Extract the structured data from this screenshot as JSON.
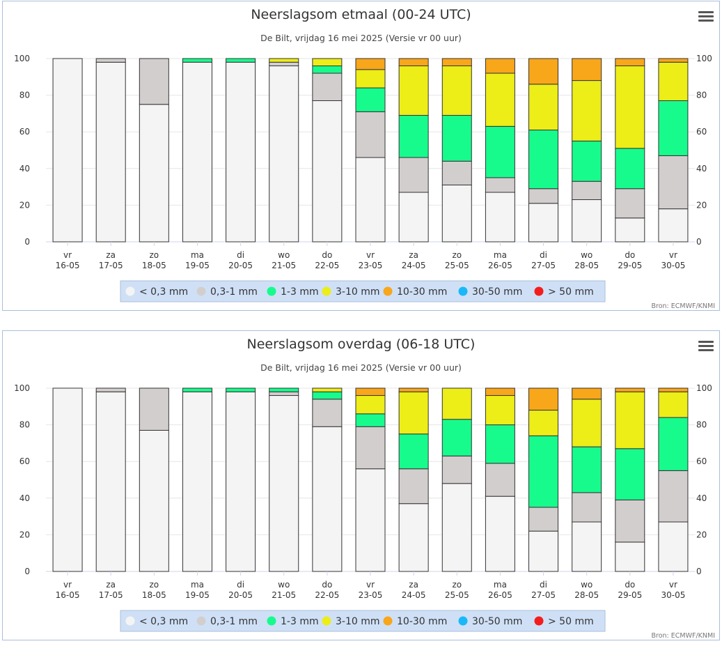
{
  "colors": {
    "lt03": "#f4f4f4",
    "c03_1": "#d3cece",
    "c1_3": "#17fb8d",
    "c3_10": "#eded18",
    "c10_30": "#f8a61a",
    "c30_50": "#1ab8f8",
    "gt50": "#f41d1d"
  },
  "legend": [
    {
      "label": "< 0,3 mm",
      "color": "#f4f4f4"
    },
    {
      "label": "0,3-1 mm",
      "color": "#d3cece"
    },
    {
      "label": "1-3 mm",
      "color": "#17fb8d"
    },
    {
      "label": "3-10 mm",
      "color": "#eded18"
    },
    {
      "label": "10-30 mm",
      "color": "#f8a61a"
    },
    {
      "label": "30-50 mm",
      "color": "#1ab8f8"
    },
    {
      "label": "> 50 mm",
      "color": "#f41d1d"
    }
  ],
  "credits": "Bron: ECMWF/KNMI",
  "chart_data": [
    {
      "type": "bar",
      "stacked": true,
      "title": "Neerslagsom etmaal (00-24 UTC)",
      "subtitle": "De Bilt, vrijdag 16 mei 2025 (Versie vr 00 uur)",
      "categories": [
        [
          "vr",
          "16-05"
        ],
        [
          "za",
          "17-05"
        ],
        [
          "zo",
          "18-05"
        ],
        [
          "ma",
          "19-05"
        ],
        [
          "di",
          "20-05"
        ],
        [
          "wo",
          "21-05"
        ],
        [
          "do",
          "22-05"
        ],
        [
          "vr",
          "23-05"
        ],
        [
          "za",
          "24-05"
        ],
        [
          "zo",
          "25-05"
        ],
        [
          "ma",
          "26-05"
        ],
        [
          "di",
          "27-05"
        ],
        [
          "wo",
          "28-05"
        ],
        [
          "do",
          "29-05"
        ],
        [
          "vr",
          "30-05"
        ]
      ],
      "ylim": [
        0,
        100
      ],
      "yticks": [
        0,
        20,
        40,
        60,
        80,
        100
      ],
      "grid": true,
      "legend_position": "bottom",
      "series": [
        {
          "name": "> 50 mm",
          "color": "#f41d1d",
          "values": [
            0,
            0,
            0,
            0,
            0,
            0,
            0,
            0,
            0,
            0,
            0,
            0,
            0,
            0,
            0
          ]
        },
        {
          "name": "30-50 mm",
          "color": "#1ab8f8",
          "values": [
            0,
            0,
            0,
            0,
            0,
            0,
            0,
            0,
            0,
            0,
            0,
            0,
            0,
            0,
            0
          ]
        },
        {
          "name": "10-30 mm",
          "color": "#f8a61a",
          "values": [
            0,
            0,
            0,
            0,
            0,
            0,
            0,
            6,
            4,
            4,
            8,
            14,
            12,
            4,
            2
          ]
        },
        {
          "name": "3-10 mm",
          "color": "#eded18",
          "values": [
            0,
            0,
            0,
            0,
            0,
            2,
            4,
            10,
            27,
            27,
            29,
            25,
            33,
            45,
            21
          ]
        },
        {
          "name": "1-3 mm",
          "color": "#17fb8d",
          "values": [
            0,
            0,
            0,
            2,
            2,
            0,
            4,
            13,
            23,
            25,
            28,
            32,
            22,
            22,
            30
          ]
        },
        {
          "name": "0,3-1 mm",
          "color": "#d3cece",
          "values": [
            0,
            2,
            25,
            0,
            0,
            2,
            15,
            25,
            19,
            13,
            8,
            8,
            10,
            16,
            29
          ]
        },
        {
          "name": "< 0,3 mm",
          "color": "#f4f4f4",
          "values": [
            100,
            98,
            75,
            98,
            98,
            96,
            77,
            46,
            27,
            31,
            27,
            21,
            23,
            13,
            18
          ]
        }
      ]
    },
    {
      "type": "bar",
      "stacked": true,
      "title": "Neerslagsom overdag (06-18 UTC)",
      "subtitle": "De Bilt, vrijdag 16 mei 2025 (Versie vr 00 uur)",
      "categories": [
        [
          "vr",
          "16-05"
        ],
        [
          "za",
          "17-05"
        ],
        [
          "zo",
          "18-05"
        ],
        [
          "ma",
          "19-05"
        ],
        [
          "di",
          "20-05"
        ],
        [
          "wo",
          "21-05"
        ],
        [
          "do",
          "22-05"
        ],
        [
          "vr",
          "23-05"
        ],
        [
          "za",
          "24-05"
        ],
        [
          "zo",
          "25-05"
        ],
        [
          "ma",
          "26-05"
        ],
        [
          "di",
          "27-05"
        ],
        [
          "wo",
          "28-05"
        ],
        [
          "do",
          "29-05"
        ],
        [
          "vr",
          "30-05"
        ]
      ],
      "ylim": [
        0,
        100
      ],
      "yticks": [
        0,
        20,
        40,
        60,
        80,
        100
      ],
      "grid": true,
      "legend_position": "bottom",
      "series": [
        {
          "name": "> 50 mm",
          "color": "#f41d1d",
          "values": [
            0,
            0,
            0,
            0,
            0,
            0,
            0,
            0,
            0,
            0,
            0,
            0,
            0,
            0,
            0
          ]
        },
        {
          "name": "30-50 mm",
          "color": "#1ab8f8",
          "values": [
            0,
            0,
            0,
            0,
            0,
            0,
            0,
            0,
            0,
            0,
            0,
            0,
            0,
            0,
            0
          ]
        },
        {
          "name": "10-30 mm",
          "color": "#f8a61a",
          "values": [
            0,
            0,
            0,
            0,
            0,
            0,
            0,
            4,
            2,
            0,
            4,
            12,
            6,
            2,
            2
          ]
        },
        {
          "name": "3-10 mm",
          "color": "#eded18",
          "values": [
            0,
            0,
            0,
            0,
            0,
            0,
            2,
            10,
            23,
            17,
            16,
            14,
            26,
            31,
            14
          ]
        },
        {
          "name": "1-3 mm",
          "color": "#17fb8d",
          "values": [
            0,
            0,
            0,
            2,
            2,
            2,
            4,
            7,
            19,
            20,
            21,
            39,
            25,
            28,
            29
          ]
        },
        {
          "name": "0,3-1 mm",
          "color": "#d3cece",
          "values": [
            0,
            2,
            23,
            0,
            0,
            2,
            15,
            23,
            19,
            15,
            18,
            13,
            16,
            23,
            28
          ]
        },
        {
          "name": "< 0,3 mm",
          "color": "#f4f4f4",
          "values": [
            100,
            98,
            77,
            98,
            98,
            96,
            79,
            56,
            37,
            48,
            41,
            22,
            27,
            16,
            27
          ]
        }
      ]
    }
  ]
}
